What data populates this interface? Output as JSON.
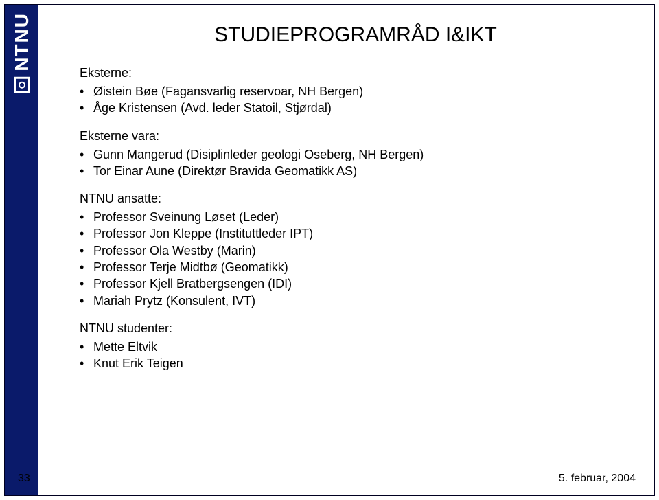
{
  "logo_text": "NTNU",
  "title": "STUDIEPROGRAMRÅD I&IKT",
  "sections": {
    "eksterne": {
      "heading": "Eksterne:",
      "items": [
        "Øistein Bøe (Fagansvarlig reservoar, NH Bergen)",
        "Åge Kristensen (Avd. leder Statoil, Stjørdal)"
      ]
    },
    "eksterne_vara": {
      "heading": "Eksterne vara:",
      "items": [
        "Gunn Mangerud (Disiplinleder geologi Oseberg, NH Bergen)",
        "Tor Einar Aune (Direktør Bravida Geomatikk AS)"
      ]
    },
    "ntnu_ansatte": {
      "heading": "NTNU ansatte:",
      "items": [
        "Professor Sveinung Løset (Leder)",
        "Professor Jon Kleppe (Instituttleder IPT)",
        "Professor Ola Westby (Marin)",
        "Professor Terje Midtbø (Geomatikk)",
        "Professor Kjell Bratbergsengen (IDI)",
        "Mariah Prytz (Konsulent, IVT)"
      ]
    },
    "ntnu_studenter": {
      "heading": "NTNU studenter:",
      "items": [
        "Mette Eltvik",
        "Knut Erik Teigen"
      ]
    }
  },
  "page_number": "33",
  "date": "5. februar, 2004",
  "colors": {
    "band": "#0a1a6a",
    "text": "#000000",
    "bg": "#ffffff"
  }
}
